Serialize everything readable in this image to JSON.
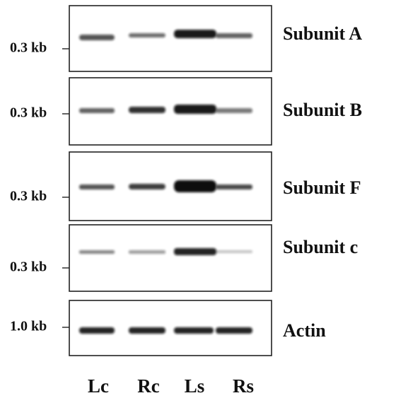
{
  "panels": [
    {
      "marker": "0.3 kb",
      "label": "Subunit A"
    },
    {
      "marker": "0.3 kb",
      "label": "Subunit B"
    },
    {
      "marker": "0.3 kb",
      "label": "Subunit F"
    },
    {
      "marker": "0.3 kb",
      "label": "Subunit c"
    },
    {
      "marker": "1.0 kb",
      "label": "Actin"
    }
  ],
  "lanes": [
    "Lc",
    "Rc",
    "Ls",
    "Rs"
  ]
}
